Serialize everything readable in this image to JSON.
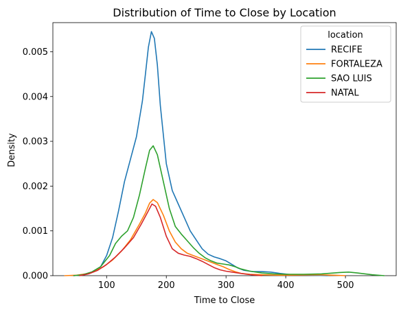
{
  "chart_data": {
    "type": "line",
    "title": "Distribution of Time to Close by Location",
    "xlabel": "Time to Close",
    "ylabel": "Density",
    "xlim": [
      10,
      585
    ],
    "ylim": [
      0,
      0.00565
    ],
    "x_ticks": [
      100,
      200,
      300,
      400,
      500
    ],
    "x_tick_labels": [
      "100",
      "200",
      "300",
      "400",
      "500"
    ],
    "y_ticks": [
      0,
      0.001,
      0.002,
      0.003,
      0.004,
      0.005
    ],
    "y_tick_labels": [
      "0.000",
      "0.001",
      "0.002",
      "0.003",
      "0.004",
      "0.005"
    ],
    "grid": false,
    "legend": {
      "title": "location",
      "placement": "top-right"
    },
    "series": [
      {
        "name": "RECIFE",
        "color": "#1f77b4",
        "points": [
          [
            45,
            0
          ],
          [
            60,
            2e-05
          ],
          [
            75,
            8e-05
          ],
          [
            90,
            0.0002
          ],
          [
            100,
            0.00045
          ],
          [
            110,
            0.00085
          ],
          [
            120,
            0.00145
          ],
          [
            130,
            0.0021
          ],
          [
            140,
            0.0026
          ],
          [
            150,
            0.0031
          ],
          [
            160,
            0.0039
          ],
          [
            165,
            0.0045
          ],
          [
            170,
            0.0051
          ],
          [
            175,
            0.00545
          ],
          [
            180,
            0.0053
          ],
          [
            185,
            0.0047
          ],
          [
            190,
            0.0038
          ],
          [
            200,
            0.0025
          ],
          [
            210,
            0.0019
          ],
          [
            220,
            0.0016
          ],
          [
            230,
            0.0013
          ],
          [
            240,
            0.001
          ],
          [
            250,
            0.0008
          ],
          [
            260,
            0.0006
          ],
          [
            270,
            0.00048
          ],
          [
            280,
            0.00042
          ],
          [
            290,
            0.00038
          ],
          [
            300,
            0.00033
          ],
          [
            310,
            0.00025
          ],
          [
            320,
            0.00017
          ],
          [
            330,
            0.00012
          ],
          [
            345,
            9e-05
          ],
          [
            360,
            9e-05
          ],
          [
            375,
            8e-05
          ],
          [
            390,
            5e-05
          ],
          [
            410,
            2e-05
          ],
          [
            440,
            1e-05
          ],
          [
            470,
            0
          ]
        ]
      },
      {
        "name": "FORTALEZA",
        "color": "#ff7f0e",
        "points": [
          [
            30,
            0
          ],
          [
            50,
            1e-05
          ],
          [
            65,
            4e-05
          ],
          [
            80,
            0.0001
          ],
          [
            95,
            0.0002
          ],
          [
            110,
            0.00035
          ],
          [
            125,
            0.00055
          ],
          [
            140,
            0.0008
          ],
          [
            155,
            0.00115
          ],
          [
            165,
            0.0014
          ],
          [
            172,
            0.00162
          ],
          [
            178,
            0.0017
          ],
          [
            185,
            0.00163
          ],
          [
            195,
            0.00135
          ],
          [
            205,
            0.001
          ],
          [
            215,
            0.00075
          ],
          [
            225,
            0.0006
          ],
          [
            235,
            0.0005
          ],
          [
            245,
            0.00045
          ],
          [
            255,
            0.0004
          ],
          [
            265,
            0.00035
          ],
          [
            275,
            0.0003
          ],
          [
            285,
            0.00025
          ],
          [
            295,
            0.0002
          ],
          [
            305,
            0.00014
          ],
          [
            315,
            9e-05
          ],
          [
            325,
            5e-05
          ],
          [
            340,
            3e-05
          ],
          [
            360,
            2e-05
          ],
          [
            390,
            1e-05
          ],
          [
            450,
            2e-05
          ],
          [
            480,
            1e-05
          ],
          [
            500,
            0
          ]
        ]
      },
      {
        "name": "SAO LUIS",
        "color": "#2ca02c",
        "points": [
          [
            45,
            0
          ],
          [
            60,
            2e-05
          ],
          [
            75,
            8e-05
          ],
          [
            90,
            0.0002
          ],
          [
            105,
            0.00045
          ],
          [
            115,
            0.00072
          ],
          [
            125,
            0.00088
          ],
          [
            135,
            0.001
          ],
          [
            145,
            0.0013
          ],
          [
            155,
            0.0018
          ],
          [
            165,
            0.0024
          ],
          [
            172,
            0.0028
          ],
          [
            178,
            0.0029
          ],
          [
            185,
            0.0027
          ],
          [
            195,
            0.0021
          ],
          [
            205,
            0.0015
          ],
          [
            215,
            0.0011
          ],
          [
            225,
            0.00093
          ],
          [
            235,
            0.00078
          ],
          [
            245,
            0.00063
          ],
          [
            255,
            0.0005
          ],
          [
            265,
            0.0004
          ],
          [
            275,
            0.00033
          ],
          [
            285,
            0.00028
          ],
          [
            295,
            0.00026
          ],
          [
            305,
            0.00024
          ],
          [
            315,
            0.0002
          ],
          [
            325,
            0.00015
          ],
          [
            340,
            0.0001
          ],
          [
            360,
            6e-05
          ],
          [
            380,
            4e-05
          ],
          [
            400,
            3e-05
          ],
          [
            430,
            3e-05
          ],
          [
            460,
            4e-05
          ],
          [
            490,
            7e-05
          ],
          [
            505,
            8e-05
          ],
          [
            520,
            6e-05
          ],
          [
            545,
            2e-05
          ],
          [
            565,
            0
          ]
        ]
      },
      {
        "name": "NATAL",
        "color": "#d62728",
        "points": [
          [
            55,
            0
          ],
          [
            70,
            4e-05
          ],
          [
            85,
            0.00012
          ],
          [
            100,
            0.00025
          ],
          [
            115,
            0.00042
          ],
          [
            130,
            0.00062
          ],
          [
            145,
            0.00085
          ],
          [
            158,
            0.00115
          ],
          [
            168,
            0.0014
          ],
          [
            176,
            0.0016
          ],
          [
            182,
            0.00155
          ],
          [
            190,
            0.0013
          ],
          [
            200,
            0.00088
          ],
          [
            210,
            0.0006
          ],
          [
            220,
            0.0005
          ],
          [
            230,
            0.00046
          ],
          [
            240,
            0.00043
          ],
          [
            250,
            0.00038
          ],
          [
            260,
            0.00032
          ],
          [
            270,
            0.00025
          ],
          [
            280,
            0.00018
          ],
          [
            290,
            0.00013
          ],
          [
            300,
            0.0001
          ],
          [
            310,
            8e-05
          ],
          [
            320,
            6e-05
          ],
          [
            335,
            3e-05
          ],
          [
            350,
            1e-05
          ],
          [
            360,
            0
          ]
        ]
      }
    ]
  }
}
